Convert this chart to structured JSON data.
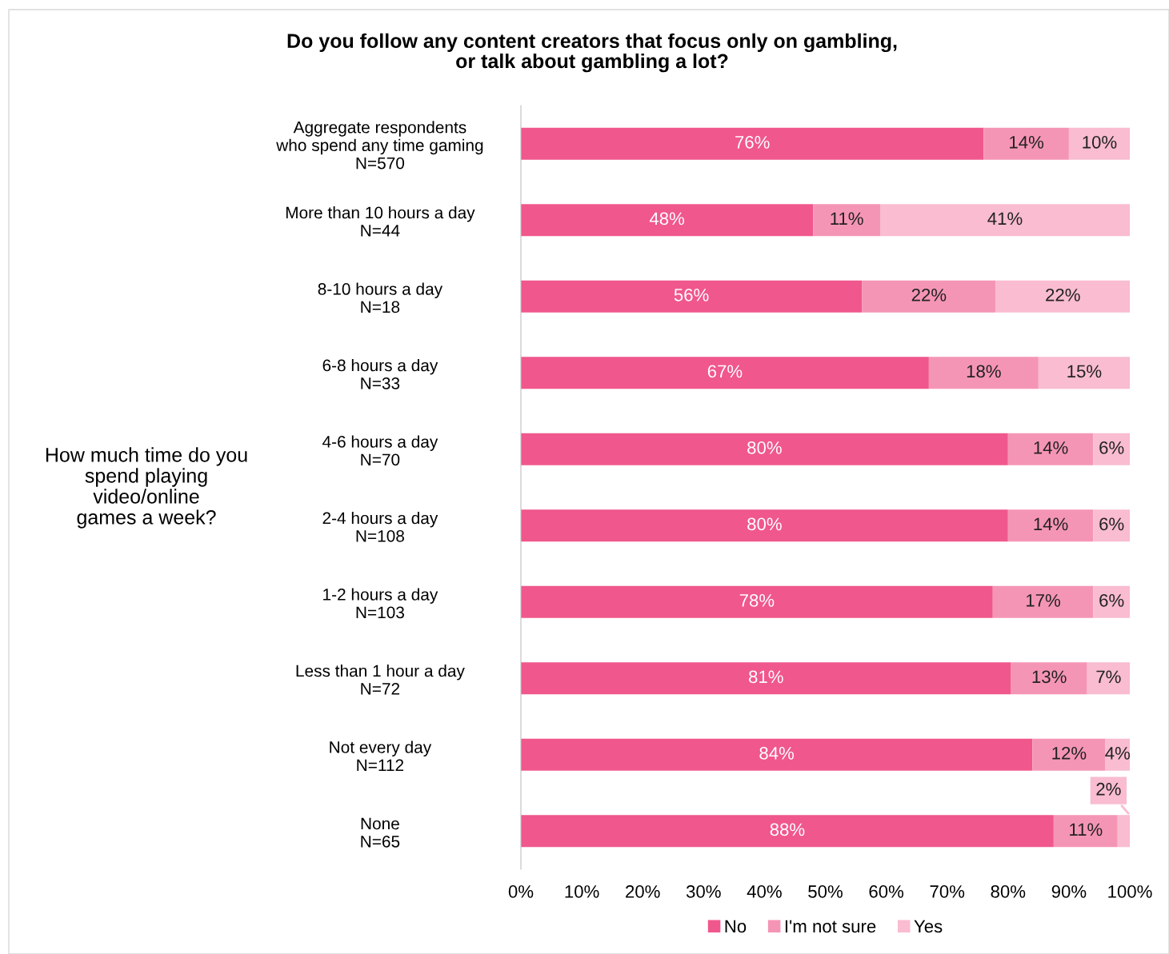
{
  "chart_data": {
    "type": "bar",
    "orientation": "horizontal",
    "stacked": true,
    "title": "Do you follow any content creators that focus only on gambling,\nor talk about gambling a lot?",
    "categories": [
      "Aggregate respondents\nwho spend any time gaming\nN=570",
      "More than 10 hours a day\nN=44",
      "8-10 hours a day\nN=18",
      "6-8 hours a day\nN=33",
      "4-6 hours a day\nN=70",
      "2-4 hours a day\nN=108",
      "1-2 hours a day\nN=103",
      "Less than 1 hour a day\nN=72",
      "Not every day\nN=112",
      "None\nN=65"
    ],
    "series": [
      {
        "name": "No",
        "color": "#f0578c",
        "values": [
          76,
          48,
          56,
          67,
          80,
          80,
          77.5,
          80.5,
          84,
          87.5
        ],
        "value_labels": [
          "76%",
          "48%",
          "56%",
          "67%",
          "80%",
          "80%",
          "78%",
          "81%",
          "84%",
          "88%"
        ]
      },
      {
        "name": "I'm not sure",
        "color": "#f595b5",
        "values": [
          14,
          11,
          22,
          18,
          14,
          14,
          16.5,
          12.5,
          12,
          10.5
        ],
        "value_labels": [
          "14%",
          "11%",
          "22%",
          "18%",
          "14%",
          "14%",
          "17%",
          "13%",
          "12%",
          "11%"
        ]
      },
      {
        "name": "Yes",
        "color": "#f9bcd0",
        "values": [
          10,
          41,
          22,
          15,
          6,
          6,
          6,
          7,
          4,
          2
        ],
        "value_labels": [
          "10%",
          "41%",
          "22%",
          "15%",
          "6%",
          "6%",
          "6%",
          "7%",
          "4%",
          "2%"
        ]
      }
    ],
    "xlim": [
      0,
      100
    ],
    "xticks": [
      {
        "value": 0,
        "label": "0%"
      },
      {
        "value": 10,
        "label": "10%"
      },
      {
        "value": 20,
        "label": "20%"
      },
      {
        "value": 30,
        "label": "30%"
      },
      {
        "value": 40,
        "label": "40%"
      },
      {
        "value": 50,
        "label": "50%"
      },
      {
        "value": 60,
        "label": "60%"
      },
      {
        "value": 70,
        "label": "70%"
      },
      {
        "value": 80,
        "label": "80%"
      },
      {
        "value": 90,
        "label": "90%"
      },
      {
        "value": 100,
        "label": "100%"
      }
    ],
    "annotations": [
      "How much time do you\nspend playing\nvideo/online\ngames a week?"
    ],
    "legend": "bottom",
    "grid": false
  }
}
